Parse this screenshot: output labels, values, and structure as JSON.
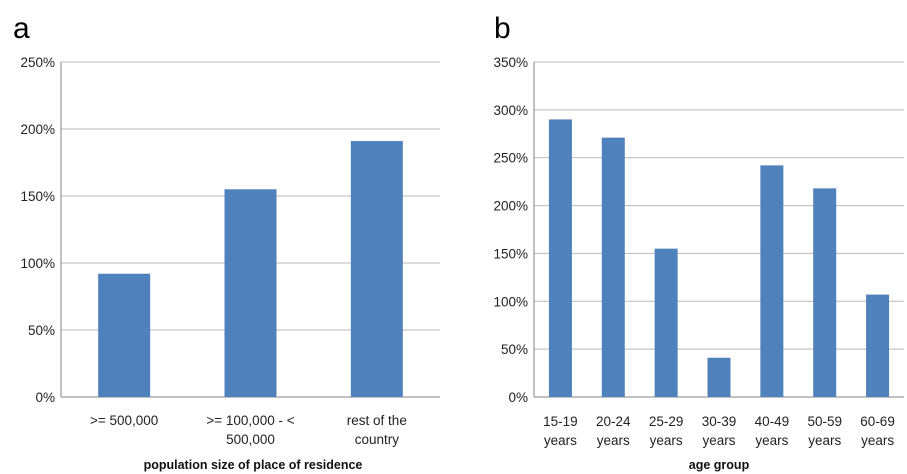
{
  "colors": {
    "bar": "#4f81bd"
  },
  "panels": {
    "a": "a",
    "b": "b"
  },
  "chart_data": [
    {
      "panel": "a",
      "type": "bar",
      "title": "",
      "xlabel": "population size of place of residence",
      "ylabel": "",
      "categories": [
        [
          ">= 500,000"
        ],
        [
          ">= 100,000 - <",
          "500,000"
        ],
        [
          "rest of the",
          "country"
        ]
      ],
      "values": [
        92,
        155,
        191
      ],
      "ylim": [
        0,
        250
      ],
      "yticks": [
        "0%",
        "50%",
        "100%",
        "150%",
        "200%",
        "250%"
      ],
      "grid": true,
      "legend": "none"
    },
    {
      "panel": "b",
      "type": "bar",
      "title": "",
      "xlabel": "age group",
      "ylabel": "",
      "categories": [
        [
          "15-19",
          "years"
        ],
        [
          "20-24",
          "years"
        ],
        [
          "25-29",
          "years"
        ],
        [
          "30-39",
          "years"
        ],
        [
          "40-49",
          "years"
        ],
        [
          "50-59",
          "years"
        ],
        [
          "60-69",
          "years"
        ]
      ],
      "values": [
        290,
        271,
        155,
        41,
        242,
        218,
        107
      ],
      "ylim": [
        0,
        350
      ],
      "yticks": [
        "0%",
        "50%",
        "100%",
        "150%",
        "200%",
        "250%",
        "300%",
        "350%"
      ],
      "grid": true,
      "legend": "none"
    }
  ]
}
